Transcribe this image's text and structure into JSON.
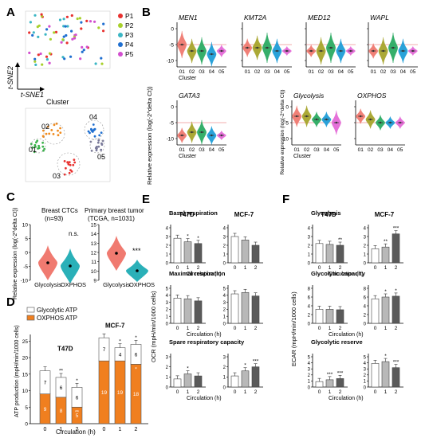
{
  "panels": {
    "A": "A",
    "B": "B",
    "C": "C",
    "D": "D",
    "E": "E",
    "F": "F"
  },
  "tsne": {
    "legend": [
      "P1",
      "P2",
      "P3",
      "P4",
      "P5"
    ],
    "colors": [
      "#e8312f",
      "#a8d02c",
      "#3bb6c4",
      "#1f6fd0",
      "#d24fcf"
    ],
    "axis_x": "t-SNE1",
    "axis_y": "t-SNE2",
    "cluster_title": "Cluster",
    "cluster_labels": [
      "01",
      "02",
      "03",
      "04",
      "05"
    ],
    "cluster_colors": [
      "#3ab24a",
      "#f08a1c",
      "#e8312f",
      "#1f6fd0",
      "#7a7a9a"
    ]
  },
  "violin_colors": [
    "#f07a70",
    "#a7a52c",
    "#2cab63",
    "#1f9ed8",
    "#e46ad8"
  ],
  "violin_genes": [
    "MEN1",
    "KMT2A",
    "MED12",
    "WAPL",
    "GATA3",
    "Glycolysis",
    "OXPHOS"
  ],
  "violin_ylabel": "Relative expression (log(-2^delta Ct))",
  "violin_xlabel": "Cluster",
  "violin_clusters": [
    "01",
    "02",
    "03",
    "04",
    "05"
  ],
  "violin_yticks": [
    "0",
    "-5",
    "-10"
  ],
  "c_panel": {
    "left_title": "Breast CTCs",
    "left_n": "(n=93)",
    "right_title": "Primary breast tumor",
    "right_n": "(TCGA, n=1031)",
    "left_sig": "n.s.",
    "right_sig": "***",
    "ylabel": "Relative expression (log(-2^delta Ct))",
    "left_yticks": [
      "-10",
      "-5",
      "0",
      "5",
      "10"
    ],
    "right_yticks": [
      "9",
      "10",
      "11",
      "12",
      "13",
      "14",
      "15"
    ],
    "categories": [
      "Glycolysis",
      "OXPHOS"
    ]
  },
  "d_panel": {
    "legend_glyco": "Glycolytic ATP",
    "legend_oxphos": "OXPHOS ATP",
    "ylabel": "ATP production (mpH/min/1000 cells)",
    "xlabel": "Circulation (h)",
    "yticks": [
      "0",
      "5",
      "10",
      "15",
      "20",
      "25"
    ],
    "cell_lines": [
      "T47D",
      "MCF-7"
    ],
    "t47d": {
      "oxphos": [
        9,
        8,
        5
      ],
      "glyco": [
        7,
        6,
        6
      ],
      "labels": [
        "0",
        "1",
        "2"
      ],
      "sig": [
        "",
        "**",
        "*"
      ],
      "osig": [
        "",
        "",
        "**"
      ]
    },
    "mcf7": {
      "oxphos": [
        19,
        19,
        18
      ],
      "glyco": [
        7,
        4,
        6
      ],
      "labels": [
        "0",
        "1",
        "2"
      ],
      "sig": [
        "",
        "*",
        "*"
      ],
      "osig": [
        "",
        "",
        "*"
      ]
    }
  },
  "e_panel": {
    "ylabel": "OCR (mpH/min/1000 cells)",
    "xlabel": "Circulation (h)",
    "cell_lines": [
      "T47D",
      "MCF-7"
    ],
    "rows": [
      {
        "title": "Basal respiration",
        "yticks": [
          "0",
          "1",
          "2",
          "3",
          "4"
        ],
        "t47d": [
          2.8,
          2.4,
          2.2
        ],
        "mcf7": [
          3.0,
          2.6,
          2.0
        ],
        "t47d_sig": [
          "",
          "*",
          "*"
        ],
        "mcf7_sig": [
          "",
          "",
          ""
        ]
      },
      {
        "title": "Maximal respiration",
        "yticks": [
          "0",
          "1",
          "2",
          "3",
          "4",
          "5"
        ],
        "t47d": [
          3.6,
          3.5,
          3.2
        ],
        "mcf7": [
          4.2,
          4.4,
          3.9
        ],
        "t47d_sig": [
          "",
          "",
          ""
        ],
        "mcf7_sig": [
          "",
          "",
          ""
        ]
      },
      {
        "title": "Spare respiratory capacity",
        "yticks": [
          "0",
          "1",
          "2",
          "3"
        ],
        "t47d": [
          0.8,
          1.3,
          1.1
        ],
        "mcf7": [
          1.1,
          1.6,
          2.0
        ],
        "t47d_sig": [
          "",
          "*",
          ""
        ],
        "mcf7_sig": [
          "",
          "*",
          "***"
        ]
      }
    ]
  },
  "f_panel": {
    "ylabel": "ECAR (mpH/min/1000 cells)",
    "xlabel": "Circulation (h)",
    "cell_lines": [
      "T47D",
      "MCF-7"
    ],
    "rows": [
      {
        "title": "Glycolysis",
        "yticks": [
          "0",
          "1",
          "2",
          "3",
          "4"
        ],
        "t47d": [
          2.2,
          2.1,
          2.0
        ],
        "mcf7": [
          1.6,
          1.8,
          3.3
        ],
        "t47d_sig": [
          "",
          "",
          "**"
        ],
        "mcf7_sig": [
          "",
          "**",
          "***"
        ]
      },
      {
        "title": "Glycolytic capacity",
        "yticks": [
          "0",
          "2",
          "4",
          "6",
          "8"
        ],
        "t47d": [
          3.2,
          3.2,
          3.1
        ],
        "mcf7": [
          5.6,
          6.0,
          6.2
        ],
        "t47d_sig": [
          "",
          "",
          ""
        ],
        "mcf7_sig": [
          "",
          "*",
          "*"
        ]
      },
      {
        "title": "Glycolytic reserve",
        "yticks": [
          "0",
          "1",
          "2",
          "3",
          "4",
          "5"
        ],
        "t47d": [
          0.9,
          1.2,
          1.4
        ],
        "mcf7": [
          3.9,
          4.2,
          3.2
        ],
        "t47d_sig": [
          "",
          "***",
          "***"
        ],
        "mcf7_sig": [
          "",
          "*",
          "***"
        ]
      }
    ]
  }
}
